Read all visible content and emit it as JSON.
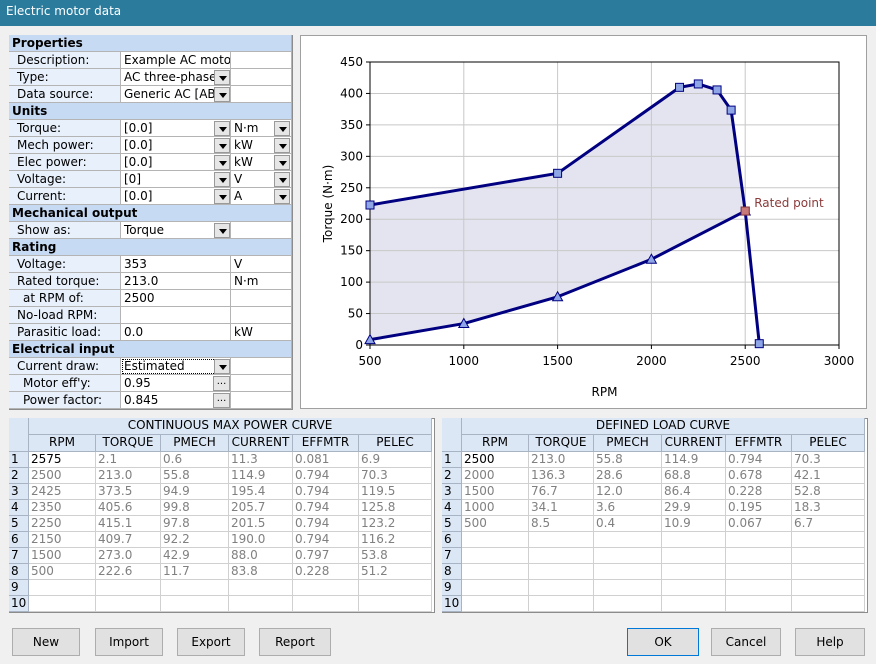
{
  "window": {
    "title": "Electric motor data"
  },
  "properties": {
    "sections": [
      {
        "title": "Properties",
        "rows": [
          {
            "label": "Description:",
            "value": "Example AC motor"
          },
          {
            "label": "Type:",
            "value": "AC three-phase",
            "dropdown": true
          },
          {
            "label": "Data source:",
            "value": "Generic AC [AB]",
            "dropdown": true
          }
        ]
      },
      {
        "title": "Units",
        "rows": [
          {
            "label": "Torque:",
            "value": "[0.0]",
            "dropdown": true,
            "unit": "N·m",
            "unit_dropdown": true
          },
          {
            "label": "Mech power:",
            "value": "[0.0]",
            "dropdown": true,
            "unit": "kW",
            "unit_dropdown": true
          },
          {
            "label": "Elec power:",
            "value": "[0.0]",
            "dropdown": true,
            "unit": "kW",
            "unit_dropdown": true
          },
          {
            "label": "Voltage:",
            "value": "[0]",
            "dropdown": true,
            "unit": "V",
            "unit_dropdown": true
          },
          {
            "label": "Current:",
            "value": "[0.0]",
            "dropdown": true,
            "unit": "A",
            "unit_dropdown": true
          }
        ]
      },
      {
        "title": "Mechanical output",
        "rows": [
          {
            "label": "Show as:",
            "value": "Torque",
            "dropdown": true
          }
        ]
      },
      {
        "title": "Rating",
        "rows": [
          {
            "label": "Voltage:",
            "value": "353",
            "unit": "V"
          },
          {
            "label": "Rated torque:",
            "value": "213.0",
            "unit": "N·m"
          },
          {
            "label": "at RPM of:",
            "value": "2500",
            "indent": true
          },
          {
            "label": "No-load RPM:"
          },
          {
            "label": "Parasitic load:",
            "value": "0.0",
            "unit": "kW"
          }
        ]
      },
      {
        "title": "Electrical input",
        "rows": [
          {
            "label": "Current draw:",
            "value": "Estimated",
            "dropdown": true,
            "focused": true
          },
          {
            "label": "Motor eff'y:",
            "value": "0.95",
            "button": "...",
            "indent": true
          },
          {
            "label": "Power factor:",
            "value": "0.845",
            "button": "...",
            "indent": true
          }
        ]
      }
    ]
  },
  "chart": {
    "type": "line",
    "xlabel": "RPM",
    "ylabel": "Torque (N·m)",
    "xlim": [
      500,
      3000
    ],
    "ylim": [
      0,
      450
    ],
    "xticks": [
      500,
      1000,
      1500,
      2000,
      2500,
      3000
    ],
    "yticks": [
      0,
      50,
      100,
      150,
      200,
      250,
      300,
      350,
      400,
      450
    ],
    "grid": true,
    "shade": "#e4e4f0",
    "series": [
      {
        "marker": "square",
        "color": "#000080",
        "marker_color": "#8fa6e6",
        "x": [
          500,
          1500,
          2150,
          2250,
          2350,
          2425,
          2500,
          2575
        ],
        "values": [
          222.6,
          273.0,
          409.7,
          415.1,
          405.6,
          373.5,
          213.0,
          2.1
        ]
      },
      {
        "marker": "triangle",
        "color": "#000080",
        "marker_color": "#8fa6e6",
        "x": [
          500,
          1000,
          1500,
          2000,
          2500
        ],
        "values": [
          8.5,
          34.1,
          76.7,
          136.3,
          213.0
        ]
      }
    ],
    "annotation": {
      "text": "Rated point",
      "x": 2500,
      "y": 213.0,
      "color": "#8b3a3a"
    }
  },
  "tables": [
    {
      "title": "CONTINUOUS MAX POWER CURVE",
      "columns": [
        "RPM",
        "TORQUE",
        "PMECH",
        "CURRENT",
        "EFFMTR",
        "PELEC"
      ],
      "rows": [
        [
          "1",
          "2575",
          "2.1",
          "0.6",
          "11.3",
          "0.081",
          "6.9"
        ],
        [
          "2",
          "2500",
          "213.0",
          "55.8",
          "114.9",
          "0.794",
          "70.3"
        ],
        [
          "3",
          "2425",
          "373.5",
          "94.9",
          "195.4",
          "0.794",
          "119.5"
        ],
        [
          "4",
          "2350",
          "405.6",
          "99.8",
          "205.7",
          "0.794",
          "125.8"
        ],
        [
          "5",
          "2250",
          "415.1",
          "97.8",
          "201.5",
          "0.794",
          "123.2"
        ],
        [
          "6",
          "2150",
          "409.7",
          "92.2",
          "190.0",
          "0.794",
          "116.2"
        ],
        [
          "7",
          "1500",
          "273.0",
          "42.9",
          "88.0",
          "0.797",
          "53.8"
        ],
        [
          "8",
          "500",
          "222.6",
          "11.7",
          "83.8",
          "0.228",
          "51.2"
        ],
        [
          "9"
        ],
        [
          "10"
        ]
      ]
    },
    {
      "title": "DEFINED LOAD CURVE",
      "columns": [
        "RPM",
        "TORQUE",
        "PMECH",
        "CURRENT",
        "EFFMTR",
        "PELEC"
      ],
      "rows": [
        [
          "1",
          "2500",
          "213.0",
          "55.8",
          "114.9",
          "0.794",
          "70.3"
        ],
        [
          "2",
          "2000",
          "136.3",
          "28.6",
          "68.8",
          "0.678",
          "42.1"
        ],
        [
          "3",
          "1500",
          "76.7",
          "12.0",
          "86.4",
          "0.228",
          "52.8"
        ],
        [
          "4",
          "1000",
          "34.1",
          "3.6",
          "29.9",
          "0.195",
          "18.3"
        ],
        [
          "5",
          "500",
          "8.5",
          "0.4",
          "10.9",
          "0.067",
          "6.7"
        ],
        [
          "6"
        ],
        [
          "7"
        ],
        [
          "8"
        ],
        [
          "9"
        ],
        [
          "10"
        ]
      ]
    }
  ],
  "buttons": {
    "left": [
      "New",
      "Import",
      "Export",
      "Report"
    ],
    "right": [
      "OK",
      "Cancel",
      "Help"
    ]
  }
}
